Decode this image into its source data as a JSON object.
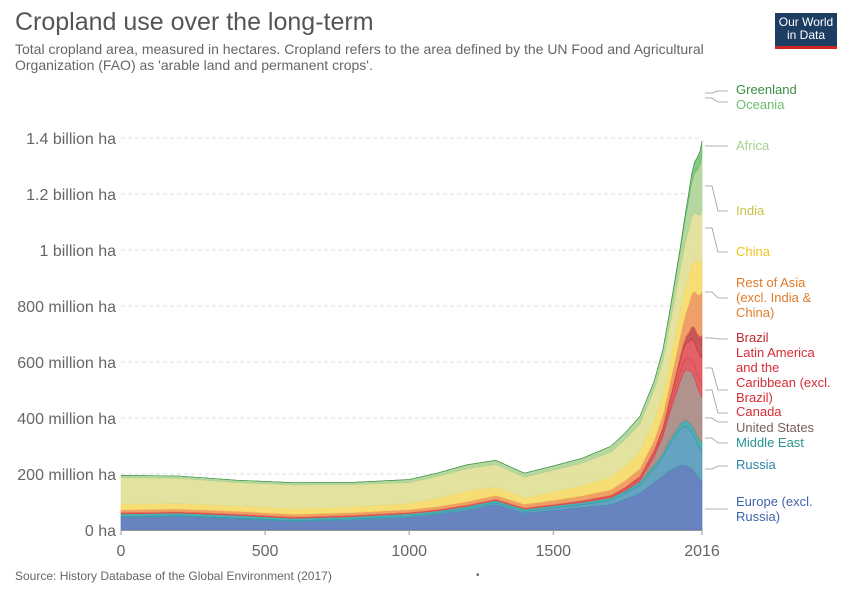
{
  "title": "Cropland use over the long-term",
  "subtitle": "Total cropland area, measured in hectares. Cropland refers to the area defined by the UN Food and Agricultural Organization (FAO) as 'arable land and permanent crops'.",
  "logo": {
    "line1": "Our World",
    "line2": "in Data"
  },
  "source": "Source: History Database of the Global Environment (2017)",
  "footer_dot": "•",
  "chart_data": {
    "type": "area",
    "stacked": true,
    "x": [
      0,
      200,
      400,
      600,
      800,
      1000,
      1100,
      1200,
      1300,
      1400,
      1500,
      1600,
      1700,
      1750,
      1800,
      1850,
      1880,
      1900,
      1920,
      1940,
      1950,
      1960,
      1970,
      1980,
      1990,
      2000,
      2010,
      2016
    ],
    "series": [
      {
        "name": "Europe (excl. Russia)",
        "color": "#4c6fb5",
        "values": [
          45,
          48,
          40,
          30,
          35,
          45,
          55,
          70,
          90,
          60,
          70,
          80,
          90,
          110,
          130,
          170,
          190,
          210,
          220,
          230,
          232,
          230,
          225,
          220,
          205,
          190,
          180,
          175
        ]
      },
      {
        "name": "Russia",
        "color": "#4a93b5",
        "values": [
          3,
          3,
          3,
          3,
          4,
          5,
          5,
          6,
          7,
          6,
          8,
          10,
          15,
          20,
          30,
          50,
          70,
          90,
          110,
          130,
          135,
          140,
          135,
          130,
          125,
          115,
          110,
          110
        ]
      },
      {
        "name": "Middle East",
        "color": "#2fa0a4",
        "values": [
          10,
          10,
          10,
          9,
          9,
          9,
          9,
          9,
          9,
          9,
          9,
          9,
          10,
          10,
          11,
          12,
          14,
          15,
          17,
          19,
          20,
          22,
          24,
          26,
          28,
          30,
          30,
          30
        ]
      },
      {
        "name": "United States",
        "color": "#a3807a",
        "values": [
          0,
          0,
          0,
          0,
          0,
          0,
          0,
          0,
          0,
          0,
          0,
          0,
          1,
          2,
          5,
          30,
          60,
          90,
          120,
          150,
          170,
          180,
          185,
          190,
          185,
          175,
          165,
          160
        ]
      },
      {
        "name": "Canada",
        "color": "#d9444c",
        "values": [
          0,
          0,
          0,
          0,
          0,
          0,
          0,
          0,
          0,
          0,
          0,
          0,
          0,
          0,
          1,
          3,
          8,
          15,
          25,
          35,
          40,
          42,
          44,
          46,
          46,
          46,
          45,
          45
        ]
      },
      {
        "name": "Latin America and the Caribbean (excl. Brazil)",
        "color": "#e0454e",
        "values": [
          4,
          4,
          4,
          4,
          4,
          4,
          4,
          4,
          4,
          4,
          4,
          5,
          6,
          8,
          10,
          15,
          18,
          22,
          30,
          40,
          45,
          52,
          60,
          70,
          80,
          85,
          90,
          95
        ]
      },
      {
        "name": "Brazil",
        "color": "#c13a3a",
        "values": [
          0,
          0,
          0,
          0,
          0,
          0,
          0,
          0,
          0,
          0,
          0,
          1,
          2,
          3,
          4,
          6,
          8,
          10,
          13,
          17,
          20,
          25,
          32,
          45,
          55,
          60,
          70,
          80
        ]
      },
      {
        "name": "Rest of Asia (excl. India & China)",
        "color": "#ec8e4e",
        "values": [
          10,
          10,
          10,
          10,
          10,
          10,
          11,
          12,
          14,
          13,
          15,
          17,
          20,
          24,
          28,
          35,
          42,
          50,
          60,
          70,
          75,
          85,
          100,
          115,
          130,
          140,
          150,
          160
        ]
      },
      {
        "name": "China",
        "color": "#f5d85c",
        "values": [
          20,
          20,
          18,
          20,
          20,
          22,
          30,
          38,
          30,
          22,
          30,
          37,
          45,
          52,
          60,
          70,
          75,
          80,
          85,
          90,
          95,
          100,
          105,
          105,
          110,
          115,
          115,
          115
        ]
      },
      {
        "name": "India",
        "color": "#dedd8e",
        "values": [
          95,
          90,
          85,
          85,
          80,
          75,
          78,
          80,
          80,
          75,
          78,
          80,
          90,
          95,
          100,
          110,
          120,
          130,
          140,
          150,
          155,
          160,
          165,
          170,
          170,
          170,
          170,
          170
        ]
      },
      {
        "name": "Africa",
        "color": "#a8d18f",
        "values": [
          8,
          8,
          8,
          8,
          8,
          10,
          12,
          14,
          15,
          14,
          15,
          17,
          20,
          23,
          26,
          30,
          35,
          40,
          50,
          60,
          70,
          85,
          100,
          120,
          140,
          160,
          180,
          200
        ]
      },
      {
        "name": "Oceania",
        "color": "#6bbd71",
        "values": [
          0,
          0,
          0,
          0,
          0,
          0,
          0,
          0,
          0,
          0,
          0,
          0,
          0,
          0,
          0,
          1,
          3,
          6,
          10,
          14,
          17,
          22,
          27,
          33,
          40,
          45,
          50,
          50
        ]
      },
      {
        "name": "Greenland",
        "color": "#3e8e41",
        "values": [
          0,
          0,
          0,
          0,
          0,
          0,
          0,
          0,
          0,
          0,
          0,
          0,
          0,
          0,
          0,
          0,
          0,
          0,
          0,
          0,
          0,
          0,
          0,
          0,
          0,
          0,
          0,
          0.01
        ]
      }
    ],
    "legend_labels": [
      {
        "lines": [
          "Greenland"
        ],
        "color": "#3e8e41"
      },
      {
        "lines": [
          "Oceania"
        ],
        "color": "#6bbd71"
      },
      {
        "lines": [
          "Africa"
        ],
        "color": "#a8d18f"
      },
      {
        "lines": [
          "India"
        ],
        "color": "#c8c34a"
      },
      {
        "lines": [
          "China"
        ],
        "color": "#f0c419"
      },
      {
        "lines": [
          "Rest of Asia",
          "(excl. India &",
          "China)"
        ],
        "color": "#e07b2a"
      },
      {
        "lines": [
          "Brazil"
        ],
        "color": "#c0282d"
      },
      {
        "lines": [
          "Latin America",
          "and the",
          "Caribbean (excl.",
          "Brazil)"
        ],
        "color": "#d62c36"
      },
      {
        "lines": [
          "Canada"
        ],
        "color": "#d62c36"
      },
      {
        "lines": [
          "United States"
        ],
        "color": "#7a5f5a"
      },
      {
        "lines": [
          "Middle East"
        ],
        "color": "#26948f"
      },
      {
        "lines": [
          "Russia"
        ],
        "color": "#2e84a8"
      },
      {
        "lines": [
          "Europe (excl.",
          "Russia)"
        ],
        "color": "#3e63ad"
      }
    ],
    "y_ticks": [
      {
        "value": 0,
        "label": "0 ha"
      },
      {
        "value": 200,
        "label": "200 million ha"
      },
      {
        "value": 400,
        "label": "400 million ha"
      },
      {
        "value": 600,
        "label": "600 million ha"
      },
      {
        "value": 800,
        "label": "800 million ha"
      },
      {
        "value": 1000,
        "label": "1 billion ha"
      },
      {
        "value": 1200,
        "label": "1.2 billion ha"
      },
      {
        "value": 1400,
        "label": "1.4 billion ha"
      }
    ],
    "x_ticks": [
      {
        "value": 0,
        "label": "0"
      },
      {
        "value": 500,
        "label": "500"
      },
      {
        "value": 1000,
        "label": "1000"
      },
      {
        "value": 1500,
        "label": "1500"
      },
      {
        "value": 2016,
        "label": "2016"
      }
    ],
    "xlim": [
      0,
      2016
    ],
    "ylim": [
      0,
      1400
    ],
    "grid": "horizontal dashed",
    "legend": "right, labels at series end"
  }
}
